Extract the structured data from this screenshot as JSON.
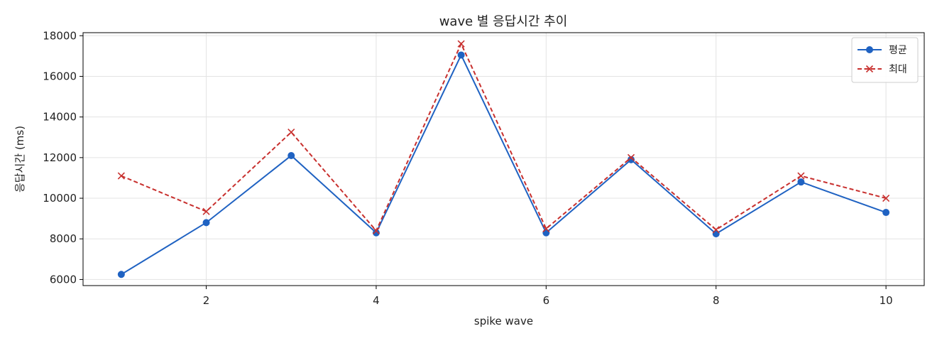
{
  "chart_data": {
    "type": "line",
    "title": "wave 별 응답시간 추이",
    "xlabel": "spike wave",
    "ylabel": "응답시간 (ms)",
    "x": [
      1,
      2,
      3,
      4,
      5,
      6,
      7,
      8,
      9,
      10
    ],
    "xlim": [
      0.55,
      10.45
    ],
    "ylim": [
      5700,
      18150
    ],
    "xticks": [
      2,
      4,
      6,
      8,
      10
    ],
    "yticks": [
      6000,
      8000,
      10000,
      12000,
      14000,
      16000,
      18000
    ],
    "grid": true,
    "legend_position": "top-right",
    "series": [
      {
        "name": "평균",
        "values": [
          6250,
          8800,
          12100,
          8300,
          17050,
          8300,
          11900,
          8250,
          10800,
          9300
        ],
        "color": "#1f62c2",
        "marker": "circle",
        "line_style": "solid"
      },
      {
        "name": "최대",
        "values": [
          11100,
          9350,
          13250,
          8400,
          17600,
          8500,
          12000,
          8450,
          11100,
          10000
        ],
        "color": "#c8302e",
        "marker": "x",
        "line_style": "dashed"
      }
    ]
  }
}
